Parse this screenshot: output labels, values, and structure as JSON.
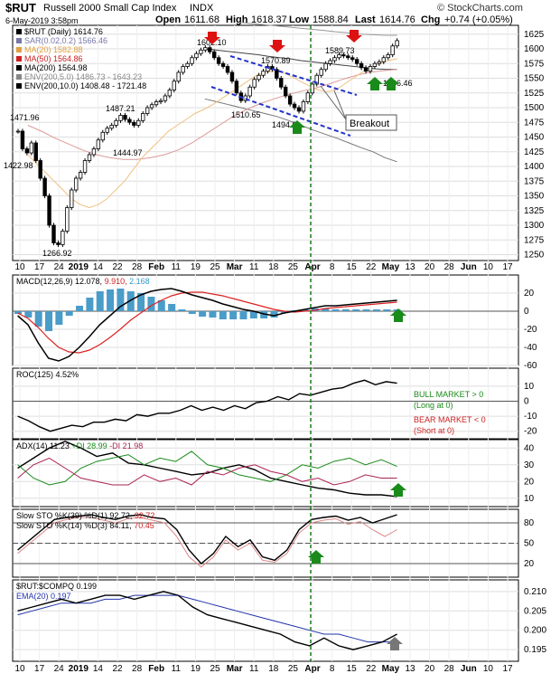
{
  "header": {
    "symbol": "$RUT",
    "name": "Russell 2000 Small Cap Index",
    "exchange": "INDX",
    "watermark": "© StockCharts.com",
    "date_time": "6-May-2019 3:58pm",
    "open_label": "Open",
    "open": "1611.68",
    "high_label": "High",
    "high": "1618.37",
    "low_label": "Low",
    "low": "1588.84",
    "last_label": "Last",
    "last": "1614.76",
    "chg_label": "Chg",
    "chg": "+0.74 (+0.05%)"
  },
  "price_legend": [
    {
      "text": "$RUT (Daily) 1614.76",
      "color": "#000000"
    },
    {
      "text": "SAR(0.02,0.2) 1566.46",
      "color": "#7777aa"
    },
    {
      "text": "MA(20) 1582.88",
      "color": "#e0a040"
    },
    {
      "text": "MA(50) 1564.86",
      "color": "#cc2222"
    },
    {
      "text": "MA(200) 1564.98",
      "color": "#000000"
    },
    {
      "text": "ENV(200,5.0) 1486.73 - 1643.23",
      "color": "#888888"
    },
    {
      "text": "ENV(200,10.0) 1408.48 - 1721.48",
      "color": "#000000"
    }
  ],
  "price_annotations": [
    "1602.10",
    "1570.89",
    "1589.73",
    "1471.96",
    "1487.21",
    "1422.98",
    "1444.97",
    "1510.65",
    "1494.0",
    "1266.92",
    "1566.46"
  ],
  "breakout_label": "Breakout",
  "date_ticks": [
    "10",
    "17",
    "24",
    "2019",
    "14",
    "22",
    "28",
    "Feb",
    "11",
    "19",
    "25",
    "Mar",
    "11",
    "18",
    "25",
    "Apr",
    "8",
    "15",
    "22",
    "May",
    "13",
    "20",
    "28",
    "Jun",
    "10",
    "17"
  ],
  "macd_title": "MACD(12,26,9) 12.078,",
  "macd_sig": "9.910,",
  "macd_hist": "2.168",
  "roc_title": "ROC(125) 4.52%",
  "roc_notes": [
    "BULL MARKET > 0",
    "(Long at 0)",
    "BEAR MARKET < 0",
    "(Short at 0)"
  ],
  "adx_title": "ADX(14) 11.23",
  "adx_pdi": "+DI 28.99",
  "adx_ndi": "-DI 21.98",
  "sto_title1": "Slow STO %K(39) %D(1) 92.72,",
  "sto_title1b": "92.72",
  "sto_title2": "Slow STO %K(14) %D(3) 84.11,",
  "sto_title2b": "70.45",
  "ratio_title": "$RUT:$COMPQ 0.199",
  "ratio_ema": "EMA(20) 0.197",
  "chart_data": {
    "type": "line",
    "title": "$RUT (Daily) 1614.76",
    "x": [
      "10",
      "17",
      "24",
      "2019",
      "14",
      "22",
      "28",
      "Feb",
      "11",
      "19",
      "25",
      "Mar",
      "11",
      "18",
      "25",
      "Apr",
      "8",
      "15",
      "22",
      "May",
      "13",
      "20",
      "28",
      "Jun",
      "10",
      "17"
    ],
    "price": {
      "ylim": [
        1240,
        1640
      ],
      "ticks": [
        1625,
        1600,
        1575,
        1550,
        1525,
        1500,
        1475,
        1450,
        1425,
        1400,
        1375,
        1350,
        1325,
        1300,
        1275,
        1250
      ],
      "close": [
        1460,
        1430,
        1423,
        1440,
        1410,
        1380,
        1350,
        1300,
        1270,
        1267,
        1290,
        1330,
        1360,
        1380,
        1390,
        1410,
        1420,
        1430,
        1445,
        1458,
        1465,
        1470,
        1478,
        1487,
        1480,
        1475,
        1470,
        1478,
        1490,
        1500,
        1505,
        1510,
        1512,
        1520,
        1530,
        1545,
        1560,
        1570,
        1575,
        1585,
        1592,
        1598,
        1602,
        1595,
        1585,
        1575,
        1570,
        1560,
        1545,
        1525,
        1512,
        1520,
        1535,
        1548,
        1555,
        1562,
        1570,
        1565,
        1550,
        1535,
        1520,
        1506,
        1500,
        1494,
        1510,
        1525,
        1540,
        1555,
        1565,
        1575,
        1580,
        1585,
        1590,
        1588,
        1585,
        1582,
        1575,
        1568,
        1562,
        1570,
        1575,
        1578,
        1585,
        1590,
        1605,
        1614
      ],
      "ma20": [
        1420,
        1405,
        1390,
        1375,
        1360,
        1345,
        1335,
        1330,
        1335,
        1345,
        1360,
        1375,
        1395,
        1415,
        1430,
        1445,
        1460,
        1470,
        1480,
        1490,
        1497,
        1505,
        1515,
        1525,
        1535,
        1545,
        1555,
        1560,
        1562,
        1560,
        1553,
        1545,
        1537,
        1530,
        1527,
        1530,
        1540,
        1550,
        1560,
        1568,
        1575,
        1580,
        1583
      ],
      "ma50": [
        1470,
        1460,
        1448,
        1438,
        1428,
        1420,
        1415,
        1412,
        1412,
        1415,
        1420,
        1428,
        1440,
        1455,
        1470,
        1485,
        1497,
        1507,
        1515,
        1522,
        1528,
        1533,
        1540,
        1548,
        1555,
        1560,
        1563,
        1565
      ],
      "ma200": [
        1600,
        1598,
        1596,
        1594,
        1592,
        1590,
        1587,
        1585,
        1583,
        1580,
        1578,
        1576,
        1574,
        1572,
        1570,
        1568,
        1566,
        1565,
        1565
      ],
      "env5_upper": [
        1645,
        1643,
        1641,
        1639,
        1637,
        1635,
        1633,
        1631,
        1629,
        1627,
        1625,
        1624,
        1623,
        1623
      ],
      "env10_lower": [
        1515,
        1510,
        1505,
        1500,
        1495,
        1490,
        1485,
        1478,
        1470,
        1462,
        1455,
        1448,
        1440,
        1432,
        1425,
        1415,
        1408
      ]
    },
    "macd": {
      "ylim": [
        -60,
        40
      ],
      "ticks": [
        20,
        0,
        -20,
        -40,
        -60
      ]
    },
    "roc": {
      "ylim": [
        -25,
        22
      ],
      "ticks": [
        10,
        0,
        -10,
        -20
      ]
    },
    "adx": {
      "ylim": [
        5,
        45
      ],
      "ticks": [
        40,
        30,
        20,
        10
      ]
    },
    "sto": {
      "ylim": [
        0,
        100
      ],
      "ticks": [
        80,
        50,
        20
      ]
    },
    "ratio": {
      "ylim": [
        0.192,
        0.213
      ],
      "ticks": [
        0.21,
        0.205,
        0.2,
        0.195
      ]
    }
  }
}
